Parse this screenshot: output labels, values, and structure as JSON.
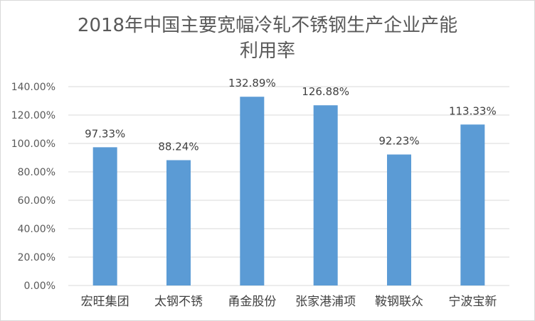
{
  "chart_data": {
    "type": "bar",
    "title_line1": "2018年中国主要宽幅冷轧不锈钢生产企业产能",
    "title_line2": "利用率",
    "categories": [
      "宏旺集团",
      "太钢不锈",
      "甬金股份",
      "张家港浦项",
      "鞍钢联众",
      "宁波宝新"
    ],
    "values": [
      97.33,
      88.24,
      132.89,
      126.88,
      92.23,
      113.33
    ],
    "data_labels": [
      "97.33%",
      "88.24%",
      "132.89%",
      "126.88%",
      "92.23%",
      "113.33%"
    ],
    "y_ticks": [
      "0.00%",
      "20.00%",
      "40.00%",
      "60.00%",
      "80.00%",
      "100.00%",
      "120.00%",
      "140.00%"
    ],
    "ylim": [
      0,
      140
    ],
    "grid": true,
    "bar_color": "#5b9bd5",
    "grid_color": "#d9d9d9",
    "xlabel": "",
    "ylabel": ""
  }
}
